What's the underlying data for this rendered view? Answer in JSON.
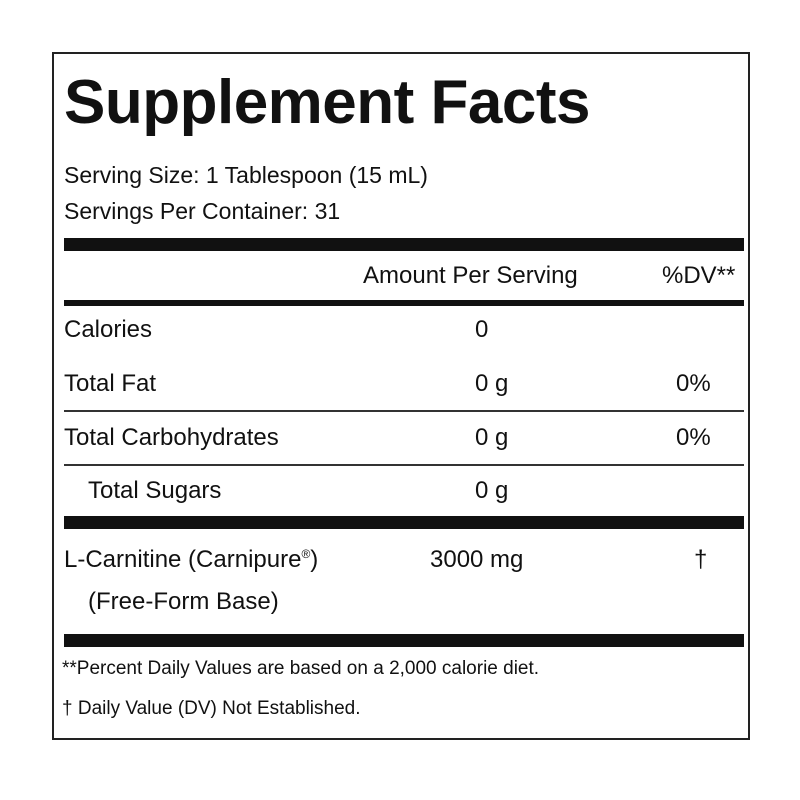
{
  "title": "Supplement Facts",
  "serving_size": "Serving Size: 1 Tablespoon (15 mL)",
  "servings_per_container": "Servings Per Container: 31",
  "header": {
    "amount": "Amount Per Serving",
    "dv": "%DV**"
  },
  "rows": [
    {
      "name": "Calories",
      "amount": "0",
      "dv": ""
    },
    {
      "name": "Total Fat",
      "amount": "0 g",
      "dv": "0%"
    },
    {
      "name": "Total Carbohydrates",
      "amount": "0 g",
      "dv": "0%"
    },
    {
      "name": "Total Sugars",
      "amount": "0 g",
      "dv": ""
    }
  ],
  "ingredient": {
    "name": "L-Carnitine (Carnipure",
    "mark": "®",
    "name_end": ")",
    "subname": "(Free-Form Base)",
    "amount": "3000 mg",
    "dv": "†"
  },
  "footnotes": [
    "**Percent Daily Values are based on a 2,000 calorie diet.",
    "† Daily Value (DV) Not Established."
  ]
}
